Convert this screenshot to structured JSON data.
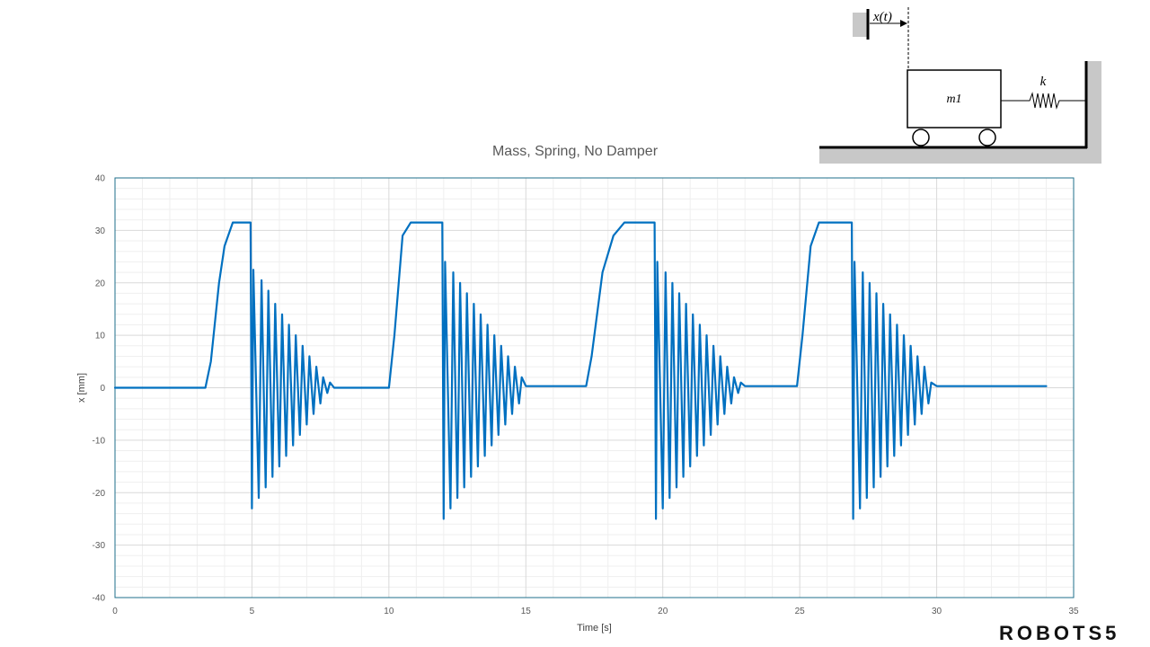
{
  "chart_data": {
    "type": "line",
    "title": "Mass, Spring, No Damper",
    "xlabel": "Time [s]",
    "ylabel": "x [mm]",
    "xlim": [
      0,
      35
    ],
    "ylim": [
      -40,
      40
    ],
    "x_ticks": [
      0,
      5,
      10,
      15,
      20,
      25,
      30,
      35
    ],
    "y_ticks": [
      40,
      30,
      20,
      10,
      0,
      -10,
      -20,
      -30,
      -40
    ],
    "grid": true,
    "legend": "none",
    "series": [
      {
        "color": "#0070c0",
        "x": [
          0,
          3.3,
          3.5,
          3.8,
          4.0,
          4.3,
          4.5,
          4.95,
          5.0,
          5.05,
          5.25,
          5.35,
          5.5,
          5.6,
          5.75,
          5.85,
          6.0,
          6.1,
          6.25,
          6.35,
          6.5,
          6.6,
          6.75,
          6.85,
          7.0,
          7.1,
          7.25,
          7.35,
          7.5,
          7.6,
          7.75,
          7.85,
          8.0,
          10.0,
          10.2,
          10.5,
          10.8,
          11.0,
          11.3,
          11.95,
          12.0,
          12.05,
          12.25,
          12.35,
          12.5,
          12.6,
          12.75,
          12.85,
          13.0,
          13.1,
          13.25,
          13.35,
          13.5,
          13.6,
          13.75,
          13.85,
          14.0,
          14.1,
          14.25,
          14.35,
          14.5,
          14.6,
          14.75,
          14.85,
          15.0,
          17.2,
          17.4,
          17.8,
          18.2,
          18.6,
          18.9,
          19.7,
          19.75,
          19.8,
          20.0,
          20.1,
          20.25,
          20.35,
          20.5,
          20.6,
          20.75,
          20.85,
          21.0,
          21.1,
          21.25,
          21.35,
          21.5,
          21.6,
          21.75,
          21.85,
          22.0,
          22.1,
          22.25,
          22.35,
          22.5,
          22.6,
          22.75,
          22.85,
          23.0,
          24.9,
          25.1,
          25.4,
          25.7,
          25.9,
          26.2,
          26.9,
          26.95,
          27.0,
          27.2,
          27.3,
          27.45,
          27.55,
          27.7,
          27.8,
          27.95,
          28.05,
          28.2,
          28.3,
          28.45,
          28.55,
          28.7,
          28.8,
          28.95,
          29.05,
          29.2,
          29.3,
          29.45,
          29.55,
          29.7,
          29.8,
          30.0,
          34.0
        ],
        "y": [
          0,
          0,
          5,
          20,
          27,
          31.5,
          31.5,
          31.5,
          -23,
          22.5,
          -21,
          20.5,
          -19,
          18.5,
          -17,
          16,
          -15,
          14,
          -13,
          12,
          -11,
          10,
          -9,
          8,
          -7,
          6,
          -5,
          4,
          -3,
          2,
          -1,
          1,
          0,
          0,
          10,
          29,
          31.5,
          31.5,
          31.5,
          31.5,
          -25,
          24,
          -23,
          22,
          -21,
          20,
          -19,
          18,
          -17,
          16,
          -15,
          14,
          -13,
          12,
          -11,
          10,
          -9,
          8,
          -7,
          6,
          -5,
          4,
          -3,
          2,
          0.3,
          0.3,
          6,
          22,
          29,
          31.5,
          31.5,
          31.5,
          -25,
          24,
          -23,
          22,
          -21,
          20,
          -19,
          18,
          -17,
          16,
          -15,
          14,
          -13,
          12,
          -11,
          10,
          -9,
          8,
          -7,
          6,
          -5,
          4,
          -3,
          2,
          -1,
          1,
          0.3,
          0.3,
          10,
          27,
          31.5,
          31.5,
          31.5,
          31.5,
          -25,
          24,
          -23,
          22,
          -21,
          20,
          -19,
          18,
          -17,
          16,
          -15,
          14,
          -13,
          12,
          -11,
          10,
          -9,
          8,
          -7,
          6,
          -5,
          4,
          -3,
          1,
          0.3,
          0.3
        ]
      }
    ]
  },
  "schematic": {
    "input_label": "x(t)",
    "mass_label": "m1",
    "spring_label": "k"
  },
  "brand": "ROBOTS5"
}
